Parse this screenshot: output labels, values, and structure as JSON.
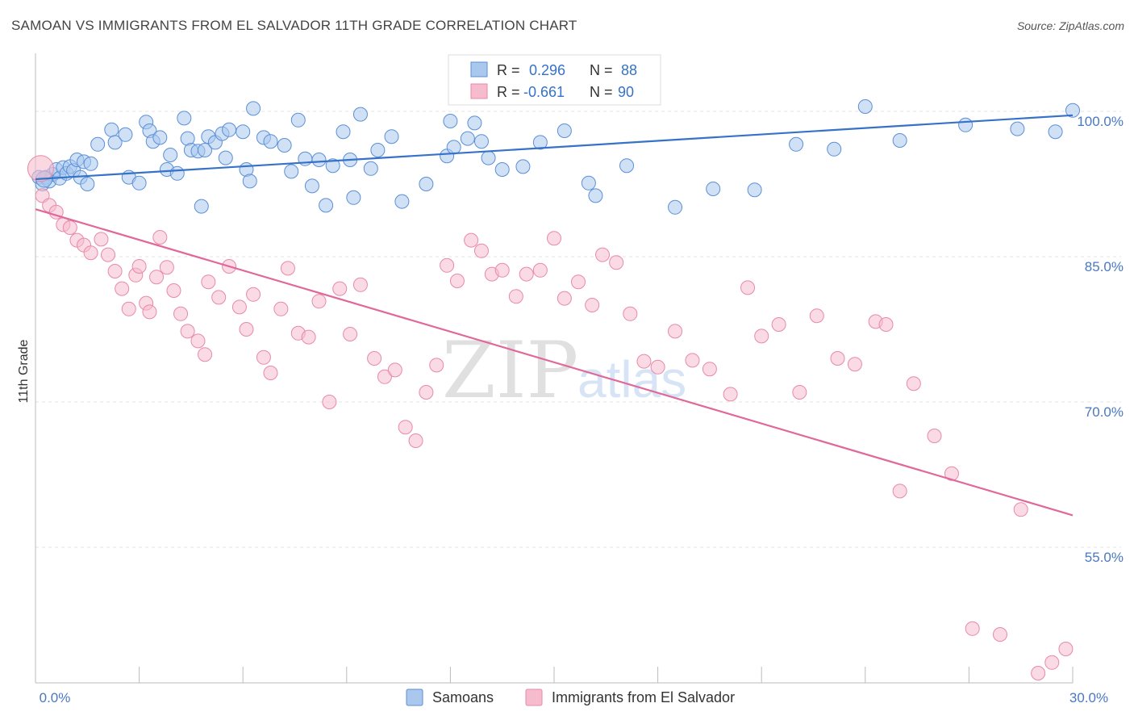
{
  "title": "SAMOAN VS IMMIGRANTS FROM EL SALVADOR 11TH GRADE CORRELATION CHART",
  "source": "Source: ZipAtlas.com",
  "watermark": {
    "zip": "ZIP",
    "atlas": "atlas"
  },
  "colors": {
    "blue_fill": "#aac8ee",
    "blue_stroke": "#5b8fd6",
    "blue_line": "#3672c8",
    "pink_fill": "#f6bccd",
    "pink_stroke": "#e88aa6",
    "pink_line": "#e0689a",
    "tick_text": "#4a78c2",
    "grid": "#e3e3e3"
  },
  "legend_box": {
    "r_label": "R =",
    "n_label": "N =",
    "rows": [
      {
        "r": "0.296",
        "n": "88"
      },
      {
        "r": "-0.661",
        "n": "90"
      }
    ]
  },
  "chart_data": {
    "type": "scatter",
    "title": "SAMOAN VS IMMIGRANTS FROM EL SALVADOR 11TH GRADE CORRELATION CHART",
    "xlabel": "",
    "ylabel": "11th Grade",
    "xlim": [
      0,
      30
    ],
    "ylim": [
      41,
      106
    ],
    "x_tick_labels": [
      "0.0%",
      "30.0%"
    ],
    "x_ticks": [
      0,
      30
    ],
    "y_ticks": [
      100,
      85,
      70,
      55
    ],
    "y_tick_labels": [
      "100.0%",
      "85.0%",
      "70.0%",
      "55.0%"
    ],
    "grid": true,
    "legend_position": "bottom-center",
    "series": [
      {
        "name": "Samoans",
        "r": 0.296,
        "n": 88,
        "trend": [
          [
            0,
            93.0
          ],
          [
            30,
            99.6
          ]
        ],
        "points": [
          [
            0.1,
            93.2
          ],
          [
            0.2,
            92.5
          ],
          [
            0.3,
            93.2
          ],
          [
            0.4,
            92.8
          ],
          [
            0.5,
            93.5
          ],
          [
            0.6,
            94.0
          ],
          [
            0.7,
            93.1
          ],
          [
            0.8,
            94.2
          ],
          [
            0.9,
            93.6
          ],
          [
            1.0,
            94.3
          ],
          [
            1.1,
            93.9
          ],
          [
            1.2,
            95.0
          ],
          [
            1.3,
            93.2
          ],
          [
            1.4,
            94.8
          ],
          [
            1.5,
            92.5
          ],
          [
            1.6,
            94.6
          ],
          [
            1.8,
            96.6
          ],
          [
            2.2,
            98.1
          ],
          [
            2.3,
            96.8
          ],
          [
            2.6,
            97.6
          ],
          [
            2.7,
            93.2
          ],
          [
            3.0,
            92.6
          ],
          [
            3.2,
            98.9
          ],
          [
            3.3,
            98.0
          ],
          [
            3.4,
            96.9
          ],
          [
            3.6,
            97.3
          ],
          [
            3.8,
            94.0
          ],
          [
            3.9,
            95.5
          ],
          [
            4.1,
            93.6
          ],
          [
            4.3,
            99.3
          ],
          [
            4.4,
            97.2
          ],
          [
            4.5,
            96.0
          ],
          [
            4.7,
            95.9
          ],
          [
            4.8,
            90.2
          ],
          [
            4.9,
            96.0
          ],
          [
            5.0,
            97.4
          ],
          [
            5.2,
            96.8
          ],
          [
            5.4,
            97.7
          ],
          [
            5.5,
            95.2
          ],
          [
            5.6,
            98.1
          ],
          [
            6.0,
            97.9
          ],
          [
            6.1,
            94.0
          ],
          [
            6.2,
            92.8
          ],
          [
            6.3,
            100.3
          ],
          [
            6.6,
            97.3
          ],
          [
            6.8,
            96.9
          ],
          [
            7.2,
            96.5
          ],
          [
            7.4,
            93.8
          ],
          [
            7.6,
            99.1
          ],
          [
            7.8,
            95.1
          ],
          [
            8.0,
            92.3
          ],
          [
            8.2,
            95.0
          ],
          [
            8.4,
            90.3
          ],
          [
            8.6,
            94.4
          ],
          [
            8.9,
            97.9
          ],
          [
            9.1,
            95.0
          ],
          [
            9.2,
            91.1
          ],
          [
            9.4,
            99.7
          ],
          [
            9.7,
            94.1
          ],
          [
            9.9,
            96.0
          ],
          [
            10.3,
            97.4
          ],
          [
            10.6,
            90.7
          ],
          [
            11.3,
            92.5
          ],
          [
            11.9,
            95.4
          ],
          [
            12.0,
            99.0
          ],
          [
            12.1,
            96.3
          ],
          [
            12.5,
            97.2
          ],
          [
            12.7,
            98.8
          ],
          [
            12.9,
            96.9
          ],
          [
            13.1,
            95.2
          ],
          [
            13.5,
            94.0
          ],
          [
            14.1,
            94.3
          ],
          [
            14.6,
            96.8
          ],
          [
            15.3,
            98.0
          ],
          [
            16.0,
            92.6
          ],
          [
            16.2,
            91.3
          ],
          [
            17.1,
            94.4
          ],
          [
            18.5,
            90.1
          ],
          [
            19.6,
            92.0
          ],
          [
            20.8,
            91.9
          ],
          [
            22.0,
            96.6
          ],
          [
            23.1,
            96.1
          ],
          [
            24.0,
            100.5
          ],
          [
            25.0,
            97.0
          ],
          [
            26.9,
            98.6
          ],
          [
            28.4,
            98.2
          ],
          [
            29.5,
            97.9
          ],
          [
            30.0,
            100.1
          ]
        ]
      },
      {
        "name": "Immigrants from El Salvador",
        "r": -0.661,
        "n": 90,
        "trend": [
          [
            0,
            89.9
          ],
          [
            30,
            58.3
          ]
        ],
        "points": [
          [
            0.2,
            91.3
          ],
          [
            0.4,
            90.3
          ],
          [
            0.6,
            89.6
          ],
          [
            0.8,
            88.3
          ],
          [
            1.0,
            88.0
          ],
          [
            1.2,
            86.7
          ],
          [
            1.4,
            86.2
          ],
          [
            1.6,
            85.4
          ],
          [
            1.9,
            86.8
          ],
          [
            2.1,
            85.2
          ],
          [
            2.3,
            83.5
          ],
          [
            2.5,
            81.7
          ],
          [
            2.7,
            79.6
          ],
          [
            2.9,
            83.1
          ],
          [
            3.0,
            84.0
          ],
          [
            3.2,
            80.2
          ],
          [
            3.3,
            79.3
          ],
          [
            3.5,
            82.9
          ],
          [
            3.6,
            87.0
          ],
          [
            3.8,
            83.9
          ],
          [
            4.0,
            81.5
          ],
          [
            4.2,
            79.1
          ],
          [
            4.4,
            77.3
          ],
          [
            4.7,
            76.3
          ],
          [
            4.9,
            74.9
          ],
          [
            5.0,
            82.4
          ],
          [
            5.3,
            80.8
          ],
          [
            5.6,
            84.0
          ],
          [
            5.9,
            79.8
          ],
          [
            6.1,
            77.5
          ],
          [
            6.3,
            81.1
          ],
          [
            6.6,
            74.6
          ],
          [
            6.8,
            73.0
          ],
          [
            7.1,
            79.6
          ],
          [
            7.3,
            83.8
          ],
          [
            7.6,
            77.1
          ],
          [
            7.9,
            76.7
          ],
          [
            8.2,
            80.4
          ],
          [
            8.5,
            70.0
          ],
          [
            8.8,
            81.7
          ],
          [
            9.1,
            77.0
          ],
          [
            9.4,
            82.1
          ],
          [
            9.8,
            74.5
          ],
          [
            10.1,
            72.6
          ],
          [
            10.4,
            73.3
          ],
          [
            10.7,
            67.4
          ],
          [
            11.0,
            66.0
          ],
          [
            11.3,
            71.0
          ],
          [
            11.6,
            73.8
          ],
          [
            11.9,
            84.1
          ],
          [
            12.2,
            82.5
          ],
          [
            12.6,
            86.7
          ],
          [
            12.9,
            85.6
          ],
          [
            13.2,
            83.2
          ],
          [
            13.5,
            83.6
          ],
          [
            13.9,
            80.9
          ],
          [
            14.2,
            83.2
          ],
          [
            14.6,
            83.6
          ],
          [
            15.0,
            86.9
          ],
          [
            15.3,
            80.7
          ],
          [
            15.7,
            82.4
          ],
          [
            16.1,
            80.0
          ],
          [
            16.4,
            85.2
          ],
          [
            16.8,
            84.4
          ],
          [
            17.2,
            79.1
          ],
          [
            17.6,
            74.2
          ],
          [
            18.0,
            73.6
          ],
          [
            18.5,
            77.3
          ],
          [
            19.0,
            74.3
          ],
          [
            19.5,
            73.4
          ],
          [
            20.1,
            70.8
          ],
          [
            20.6,
            81.8
          ],
          [
            21.0,
            76.8
          ],
          [
            21.5,
            78.0
          ],
          [
            22.1,
            71.0
          ],
          [
            22.6,
            78.9
          ],
          [
            23.2,
            74.5
          ],
          [
            23.7,
            73.9
          ],
          [
            24.3,
            78.3
          ],
          [
            25.0,
            60.8
          ],
          [
            25.4,
            71.9
          ],
          [
            26.0,
            66.5
          ],
          [
            26.5,
            62.6
          ],
          [
            27.1,
            46.6
          ],
          [
            27.9,
            46.0
          ],
          [
            28.5,
            58.9
          ],
          [
            29.0,
            42.0
          ],
          [
            29.4,
            43.1
          ],
          [
            29.8,
            44.5
          ],
          [
            24.6,
            78.0
          ]
        ]
      }
    ]
  },
  "bottom_legend": [
    "Samoans",
    "Immigrants from El Salvador"
  ]
}
